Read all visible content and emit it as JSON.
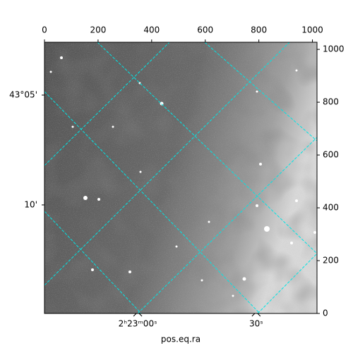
{
  "chart_data": {
    "type": "image",
    "xlim": [
      0,
      1017
    ],
    "ylim": [
      0,
      1027
    ],
    "xticks": [
      0,
      200,
      400,
      600,
      800,
      1000
    ],
    "yticks": [
      0,
      200,
      400,
      600,
      800,
      1000
    ],
    "ra_ticks": [
      {
        "value": 348,
        "label": "2ʰ23ᵐ00ˢ"
      },
      {
        "value": 790,
        "label": "30ˢ"
      }
    ],
    "dec_ticks": [
      {
        "value": 827,
        "label": "43°05'"
      },
      {
        "value": 411,
        "label": "10'"
      }
    ],
    "xlabel": "pos.eq.ra",
    "grid_color": "#00e5e5"
  }
}
